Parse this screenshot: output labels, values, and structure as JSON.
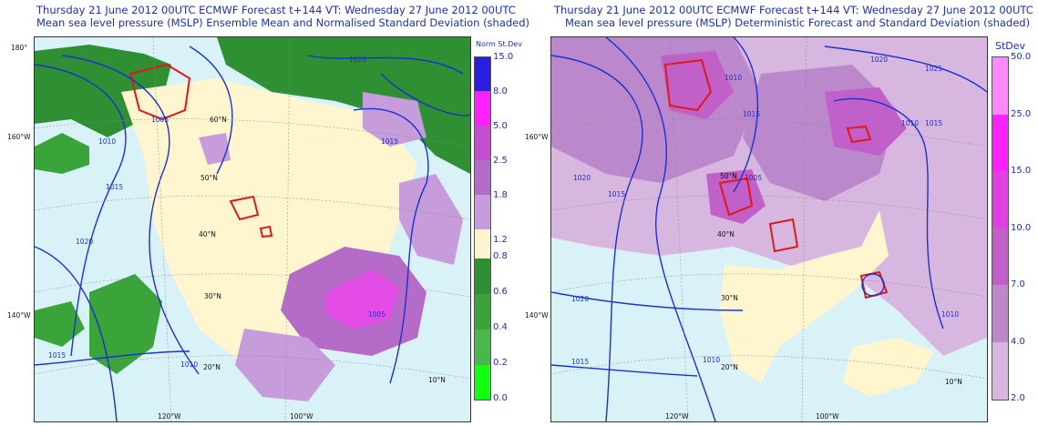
{
  "left_panel": {
    "title_line1": "Thursday 21 June 2012 00UTC ECMWF Forecast t+144  VT: Wednesday 27 June 2012 00UTC",
    "title_line2": "Mean sea level pressure (MSLP) Ensemble Mean and Normalised Standard Deviation (shaded)",
    "colorbar_title": "Norm St.Dev",
    "colorbar_ticks": [
      "15.0",
      "8.0",
      "5.0",
      "2.5",
      "1.8",
      "1.2",
      "0.8",
      "0.6",
      "0.4",
      "0.2",
      "0.0"
    ],
    "colorbar_colors": [
      "#2b1ee0",
      "#ff20ff",
      "#c44ed0",
      "#b56cc9",
      "#c79cda",
      "#fff6d0",
      "#2f8f33",
      "#3aa43a",
      "#49b84a",
      "#33d833",
      "#12ff12"
    ],
    "grid_labels": {
      "lon_180": "180°",
      "lon_160w": "160°W",
      "lon_140w": "140°W",
      "lon_120w": "120°W",
      "lon_100w": "100°W",
      "lat_60n": "60°N",
      "lat_50n": "50°N",
      "lat_40n": "40°N",
      "lat_30n": "30°N",
      "lat_20n": "20°N",
      "lat_10n": "10°N"
    },
    "isobars": [
      "1020",
      "1010",
      "1015",
      "1005",
      "1010",
      "1015",
      "1020",
      "1010",
      "1015",
      "1005",
      "1010",
      "1015",
      "1015",
      "1010",
      "1005",
      "1015",
      "1020"
    ]
  },
  "right_panel": {
    "title_line1": "Thursday 21 June 2012 00UTC ECMWF Forecast t+144  VT: Wednesday 27 June 2012 00UTC",
    "title_line2": "Mean sea level pressure (MSLP) Deterministic Forecast and Standard Deviation (shaded)",
    "colorbar_title": "StDev",
    "colorbar_ticks": [
      "50.0",
      "25.0",
      "15.0",
      "10.0",
      "7.0",
      "4.0",
      "2.0"
    ],
    "colorbar_colors": [
      "#ff88ff",
      "#ff20ff",
      "#e040e0",
      "#c060c8",
      "#bb88cc",
      "#d7b7df"
    ],
    "grid_labels": {
      "lon_160w": "160°W",
      "lon_140w": "140°W",
      "lon_120w": "120°W",
      "lon_100w": "100°W",
      "lat_50n": "50°N",
      "lat_40n": "40°N",
      "lat_30n": "30°N",
      "lat_20n": "20°N",
      "lat_10n": "10°N"
    },
    "isobars": [
      "1020",
      "1015",
      "1015",
      "1010",
      "1005",
      "1020",
      "1025",
      "1015",
      "1010",
      "1020",
      "1010",
      "1010",
      "1015"
    ]
  }
}
